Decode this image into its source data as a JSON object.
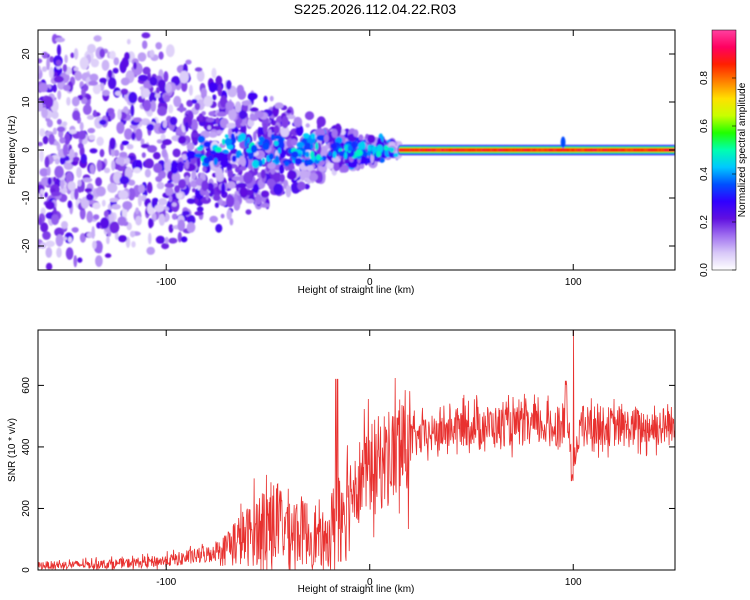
{
  "title": "S225.2026.112.04.22.R03",
  "chart_data": [
    {
      "type": "heatmap",
      "name": "spectrogram",
      "xlabel": "Height of straight line (km)",
      "ylabel": "Frequency (Hz)",
      "xlim": [
        -163,
        150
      ],
      "ylim": [
        -25,
        25
      ],
      "xticks": [
        -100,
        0,
        100
      ],
      "xtick_labels": [
        "-100",
        "0",
        "100"
      ],
      "yticks": [
        -20,
        -10,
        0,
        10,
        20
      ],
      "ytick_labels": [
        "-20",
        "-10",
        "0",
        "10",
        "20"
      ],
      "colorbar": {
        "label": "Normalized spectral amplitude",
        "range": [
          0,
          1
        ],
        "ticks": [
          0.0,
          0.2,
          0.4,
          0.6,
          0.8
        ],
        "tick_labels": [
          "0.0",
          "0.2",
          "0.4",
          "0.6",
          "0.8"
        ],
        "colors": [
          "#ffffff",
          "#d8c8f8",
          "#a070f0",
          "#6010e0",
          "#3000ff",
          "#0050ff",
          "#00c8ff",
          "#00ffb0",
          "#20ff00",
          "#c8ff00",
          "#ffe000",
          "#ff8000",
          "#ff2000",
          "#ff0060",
          "#ff40a0"
        ]
      },
      "carrier": {
        "from_x": 15,
        "to_x": 150,
        "freq": 0,
        "amplitude": 0.9
      }
    },
    {
      "type": "line",
      "name": "snr",
      "xlabel": "Height of straight line (km)",
      "ylabel": "SNR (10 * v/v)",
      "xlim": [
        -163,
        150
      ],
      "ylim": [
        0,
        780
      ],
      "xticks": [
        -100,
        0,
        100
      ],
      "xtick_labels": [
        "-100",
        "0",
        "100"
      ],
      "yticks": [
        0,
        200,
        400,
        600
      ],
      "ytick_labels": [
        "0",
        "200",
        "400",
        "600"
      ],
      "color": "#e8312f",
      "trend": {
        "x": [
          -163,
          -140,
          -120,
          -100,
          -80,
          -70,
          -60,
          -50,
          -40,
          -30,
          -22,
          -15,
          -10,
          -5,
          0,
          10,
          20,
          30,
          40,
          50,
          60,
          70,
          80,
          90,
          97,
          100,
          103,
          110,
          120,
          130,
          140,
          150
        ],
        "y": [
          15,
          18,
          22,
          30,
          50,
          80,
          110,
          160,
          140,
          120,
          80,
          200,
          260,
          300,
          330,
          370,
          420,
          440,
          460,
          470,
          470,
          465,
          470,
          465,
          480,
          330,
          470,
          470,
          465,
          460,
          465,
          470
        ]
      }
    }
  ]
}
